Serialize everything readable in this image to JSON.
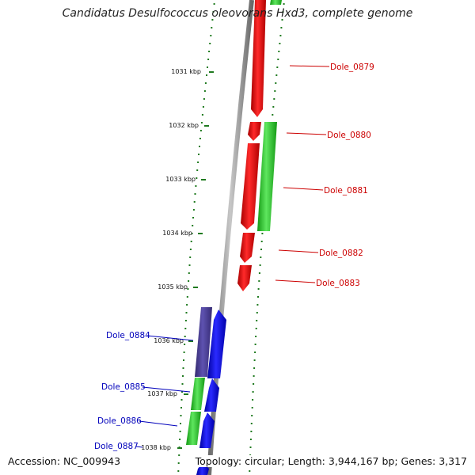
{
  "map": {
    "title": "Candidatus Desulfococcus oleovorans Hxd3, complete genome",
    "accession": "Accession: NC_009943",
    "summary": "Topology: circular; Length: 3,944,167 bp; Genes: 3,317",
    "colors": {
      "backbone": "#8a8a8a",
      "ticks": "#1f7a1f",
      "forward_gene": "#ee0000",
      "forward_gene_alt": "#22cc22",
      "reverse_gene": "#0000ee",
      "reverse_gene_dark": "#4b3f9a",
      "reverse_gene_alt": "#33cc33",
      "label_forward": "#cc0000",
      "label_reverse": "#0000bb"
    },
    "ruler": [
      {
        "label": "1031 kbp"
      },
      {
        "label": "1032 kbp"
      },
      {
        "label": "1033 kbp"
      },
      {
        "label": "1034 kbp"
      },
      {
        "label": "1035 kbp"
      },
      {
        "label": "1036 kbp"
      },
      {
        "label": "1037 kbp"
      },
      {
        "label": "1038 kbp"
      }
    ],
    "gene_labels_right": [
      {
        "label": "Dole_0879"
      },
      {
        "label": "Dole_0880"
      },
      {
        "label": "Dole_0881"
      },
      {
        "label": "Dole_0882"
      },
      {
        "label": "Dole_0883"
      }
    ],
    "gene_labels_left": [
      {
        "label": "Dole_0884"
      },
      {
        "label": "Dole_0885"
      },
      {
        "label": "Dole_0886"
      },
      {
        "label": "Dole_0887"
      }
    ]
  }
}
